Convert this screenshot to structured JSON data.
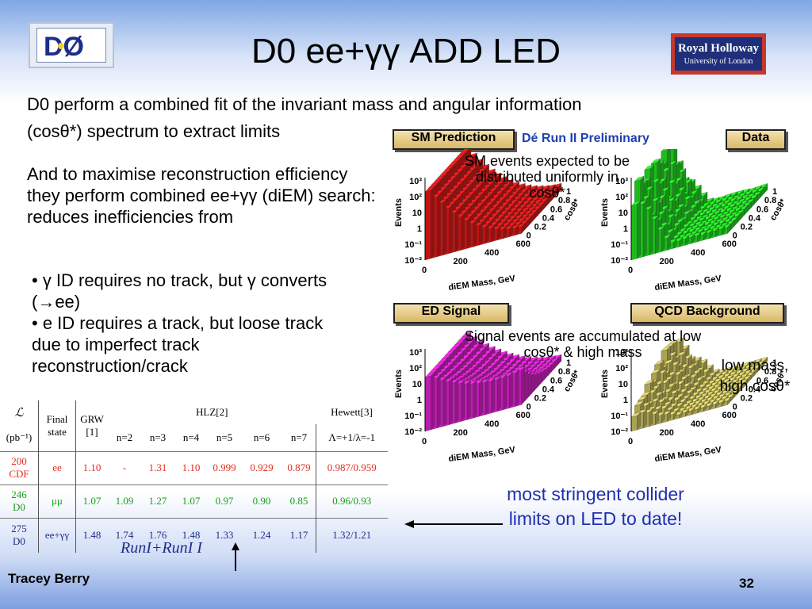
{
  "title": "D0 ee+γγ ADD LED",
  "logos": {
    "d0_text": "DØ",
    "rh_line1": "Royal Holloway",
    "rh_line2": "University of London"
  },
  "intro_line1": "D0 perform a combined fit of the invariant mass and angular information",
  "intro_line2": "(cosθ*) spectrum to extract limits",
  "para2": "And to maximise reconstruction efficiency they perform combined ee+γγ (diEM) search: reduces inefficiencies from",
  "bullets": [
    "• γ ID requires no track, but γ converts (→ee)",
    "• e ID requires a track, but loose track due to imperfect track reconstruction/crack"
  ],
  "panels": {
    "sm": "SM Prediction",
    "data": "Data",
    "ed": "ED Signal",
    "qcd": "QCD Background",
    "preliminary": "Dé Run  II Preliminary"
  },
  "notes": {
    "sm": "SM events expected to be distributed uniformly in cosθ*",
    "signal": "Signal events are accumulated at low cosθ* & high mass",
    "qcd": "low mass, high cosθ*"
  },
  "axes": {
    "z_label": "Events",
    "z_ticks": [
      "10³",
      "10²",
      "10",
      "1",
      "10⁻¹",
      "10⁻²"
    ],
    "x_ticks": [
      "0",
      "200",
      "400",
      "600"
    ],
    "x_label": "diEM Mass, GeV",
    "y_ticks": [
      "0",
      "0.2",
      "0.4",
      "0.6",
      "0.8",
      "1"
    ],
    "y_label": "cosθ*"
  },
  "table": {
    "lumi_header": "ℒ",
    "lumi_unit": "(pb⁻¹)",
    "final_state": "Final state",
    "grw": "GRW [1]",
    "hlz": "HLZ[2]",
    "hewett": "Hewett[3]",
    "n_headers": [
      "n=2",
      "n=3",
      "n=4",
      "n=5",
      "n=6",
      "n=7"
    ],
    "hewett_sub": "Λ=+1/λ=-1",
    "rows": [
      {
        "lumi": "200",
        "exp": "CDF",
        "state": "ee",
        "grw": "1.10",
        "hlz": [
          "-",
          "1.31",
          "1.10",
          "0.999",
          "0.929",
          "0.879"
        ],
        "hewett": "0.987/0.959"
      },
      {
        "lumi": "246",
        "exp": "D0",
        "state": "μμ",
        "grw": "1.07",
        "hlz": [
          "1.09",
          "1.27",
          "1.07",
          "0.97",
          "0.90",
          "0.85"
        ],
        "hewett": "0.96/0.93"
      },
      {
        "lumi": "275",
        "exp": "D0",
        "state": "ee+γγ",
        "grw": "1.48",
        "hlz": [
          "1.74",
          "1.76",
          "1.48",
          "1.33",
          "1.24",
          "1.17"
        ],
        "hewett": "1.32/1.21"
      }
    ]
  },
  "runi_note": "RunI+RunI I",
  "stringent": "most stringent collider limits on LED to date!",
  "author": "Tracey Berry",
  "page_number": "32",
  "colors": {
    "sm": "#e01818",
    "data": "#22dd22",
    "ed": "#e020d0",
    "qcd": "#c8c060",
    "title_blue": "#1f3fae"
  }
}
